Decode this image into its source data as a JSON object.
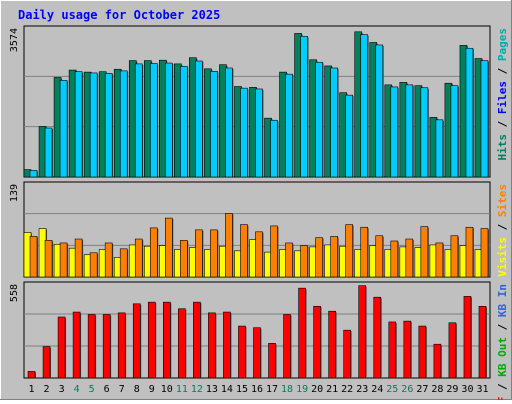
{
  "chart_data": {
    "type": "bar",
    "title": "Daily usage for October 2025",
    "x_ticks": [
      "1",
      "2",
      "3",
      "4",
      "5",
      "6",
      "7",
      "8",
      "9",
      "10",
      "11",
      "12",
      "13",
      "14",
      "15",
      "16",
      "17",
      "18",
      "19",
      "20",
      "21",
      "22",
      "23",
      "24",
      "25",
      "26",
      "27",
      "28",
      "29",
      "30",
      "31"
    ],
    "weekend_days": [
      4,
      5,
      11,
      12,
      18,
      19,
      25,
      26
    ],
    "colors": {
      "title": "#0000ff",
      "pages": "#00aaaa",
      "files": "#0000ff",
      "hits": "#00805c",
      "visits": "#ffff00",
      "sites": "#ff8000",
      "kb_in": "#3366cc",
      "kb_out": "#00aa00",
      "kb_f": "#ff0000",
      "weekend_tick": "#00805c",
      "weekday_tick": "#000000"
    },
    "panels": [
      {
        "id": "top",
        "ymax_label": "3574",
        "ymax": 3574,
        "legend": [
          {
            "text": "Hits",
            "color": "#00805c"
          },
          {
            "text": " / ",
            "color": "#000000"
          },
          {
            "text": "Files",
            "color": "#0000ff"
          },
          {
            "text": " / ",
            "color": "#000000"
          },
          {
            "text": "Pages",
            "color": "#00aaaa"
          }
        ],
        "series": [
          {
            "name": "Hits",
            "color": "#00805c",
            "values": [
              180,
              1230,
              2420,
              2600,
              2550,
              2560,
              2620,
              2830,
              2830,
              2840,
              2750,
              2900,
              2630,
              2730,
              2200,
              2180,
              1430,
              2550,
              3490,
              2850,
              2700,
              2050,
              3530,
              3270,
              2240,
              2300,
              2220,
              1450,
              2280,
              3200,
              2880
            ]
          },
          {
            "name": "Files",
            "color": "#00ccff",
            "values": [
              160,
              1190,
              2350,
              2560,
              2530,
              2520,
              2580,
              2750,
              2760,
              2770,
              2690,
              2820,
              2570,
              2650,
              2160,
              2140,
              1380,
              2500,
              3420,
              2790,
              2650,
              1990,
              3460,
              3210,
              2190,
              2240,
              2170,
              1390,
              2220,
              3130,
              2830
            ]
          }
        ]
      },
      {
        "id": "middle",
        "ymax_label": "139",
        "ymax": 139,
        "legend": [
          {
            "text": "Visits",
            "color": "#ffff00"
          },
          {
            "text": " / ",
            "color": "#000000"
          },
          {
            "text": "Sites",
            "color": "#ff8000"
          }
        ],
        "series": [
          {
            "name": "Visits",
            "color": "#ffff00",
            "values": [
              68,
              74,
              50,
              44,
              34,
              42,
              30,
              49,
              47,
              48,
              42,
              45,
              42,
              47,
              40,
              57,
              38,
              42,
              40,
              46,
              49,
              47,
              42,
              48,
              42,
              46,
              45,
              49,
              42,
              48,
              42
            ]
          },
          {
            "name": "Sites",
            "color": "#ff8000",
            "values": [
              62,
              56,
              52,
              58,
              37,
              52,
              43,
              58,
              75,
              90,
              56,
              72,
              72,
              97,
              80,
              69,
              78,
              52,
              48,
              60,
              62,
              80,
              76,
              63,
              55,
              58,
              77,
              52,
              63,
              76,
              74
            ]
          }
        ]
      },
      {
        "id": "bottom",
        "ymax_label": "558",
        "ymax": 558,
        "legend": [
          {
            "text": "KB F",
            "color": "#ff0000"
          },
          {
            "text": " / ",
            "color": "#000000"
          },
          {
            "text": "KB Out",
            "color": "#00aa00"
          },
          {
            "text": " / ",
            "color": "#000000"
          },
          {
            "text": "KB In",
            "color": "#3366cc"
          }
        ],
        "series": [
          {
            "name": "KB F",
            "color": "#ff0000",
            "values": [
              40,
              190,
              370,
              400,
              385,
              385,
              395,
              450,
              460,
              460,
              420,
              460,
              395,
              400,
              315,
              305,
              210,
              385,
              545,
              435,
              405,
              290,
              560,
              490,
              340,
              345,
              315,
              205,
              335,
              495,
              435
            ]
          }
        ]
      }
    ]
  }
}
